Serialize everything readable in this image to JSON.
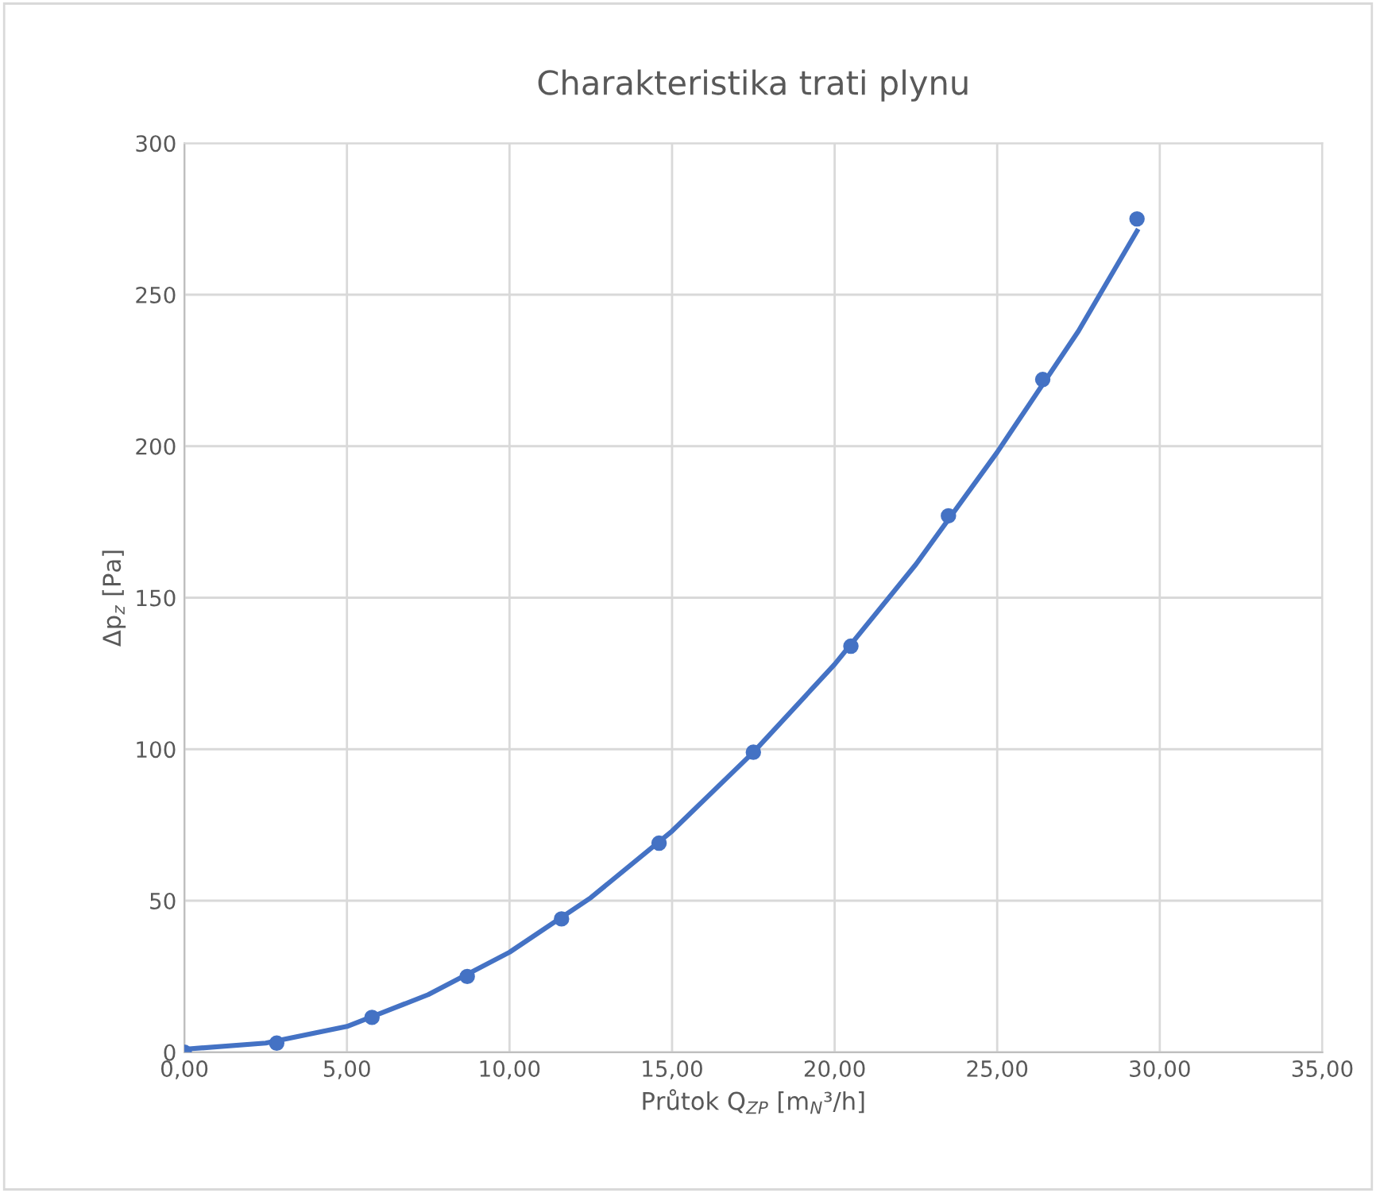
{
  "chart_data": {
    "type": "scatter",
    "title": "Charakteristika trati plynu",
    "xlabel": "Průtok Q$_{ZP}$ [m$_{N}$³/h]",
    "ylabel": "Δp$_{z}$ [Pa]",
    "x": [
      0,
      2.84,
      5.77,
      8.7,
      11.6,
      14.6,
      17.5,
      20.5,
      23.5,
      26.4,
      29.3
    ],
    "series": [
      {
        "color": "#4472c4",
        "marker": "circle",
        "values": [
          0,
          3,
          11.5,
          25,
          44,
          69,
          99,
          134,
          177,
          222,
          275
        ]
      },
      {
        "type": "line",
        "color": "#4472c4",
        "marker": "none",
        "x": [
          0,
          2.5,
          5,
          7.5,
          10,
          12.5,
          15,
          17.5,
          20,
          22.5,
          25,
          27.5,
          29.3
        ],
        "values": [
          1,
          3,
          8.5,
          19,
          33,
          51,
          73,
          99,
          128,
          161,
          198,
          238,
          271
        ]
      }
    ],
    "xlim": [
      0,
      35
    ],
    "xticks": [
      {
        "value": 0,
        "label": "0,00"
      },
      {
        "value": 5,
        "label": "5,00"
      },
      {
        "value": 10,
        "label": "10,00"
      },
      {
        "value": 15,
        "label": "15,00"
      },
      {
        "value": 20,
        "label": "20,00"
      },
      {
        "value": 25,
        "label": "25,00"
      },
      {
        "value": 30,
        "label": "30,00"
      },
      {
        "value": 35,
        "label": "35,00"
      }
    ],
    "ylim": [
      0,
      300
    ],
    "yticks": [
      0,
      50,
      100,
      150,
      200,
      250,
      300
    ],
    "grid": true,
    "legend": false
  }
}
